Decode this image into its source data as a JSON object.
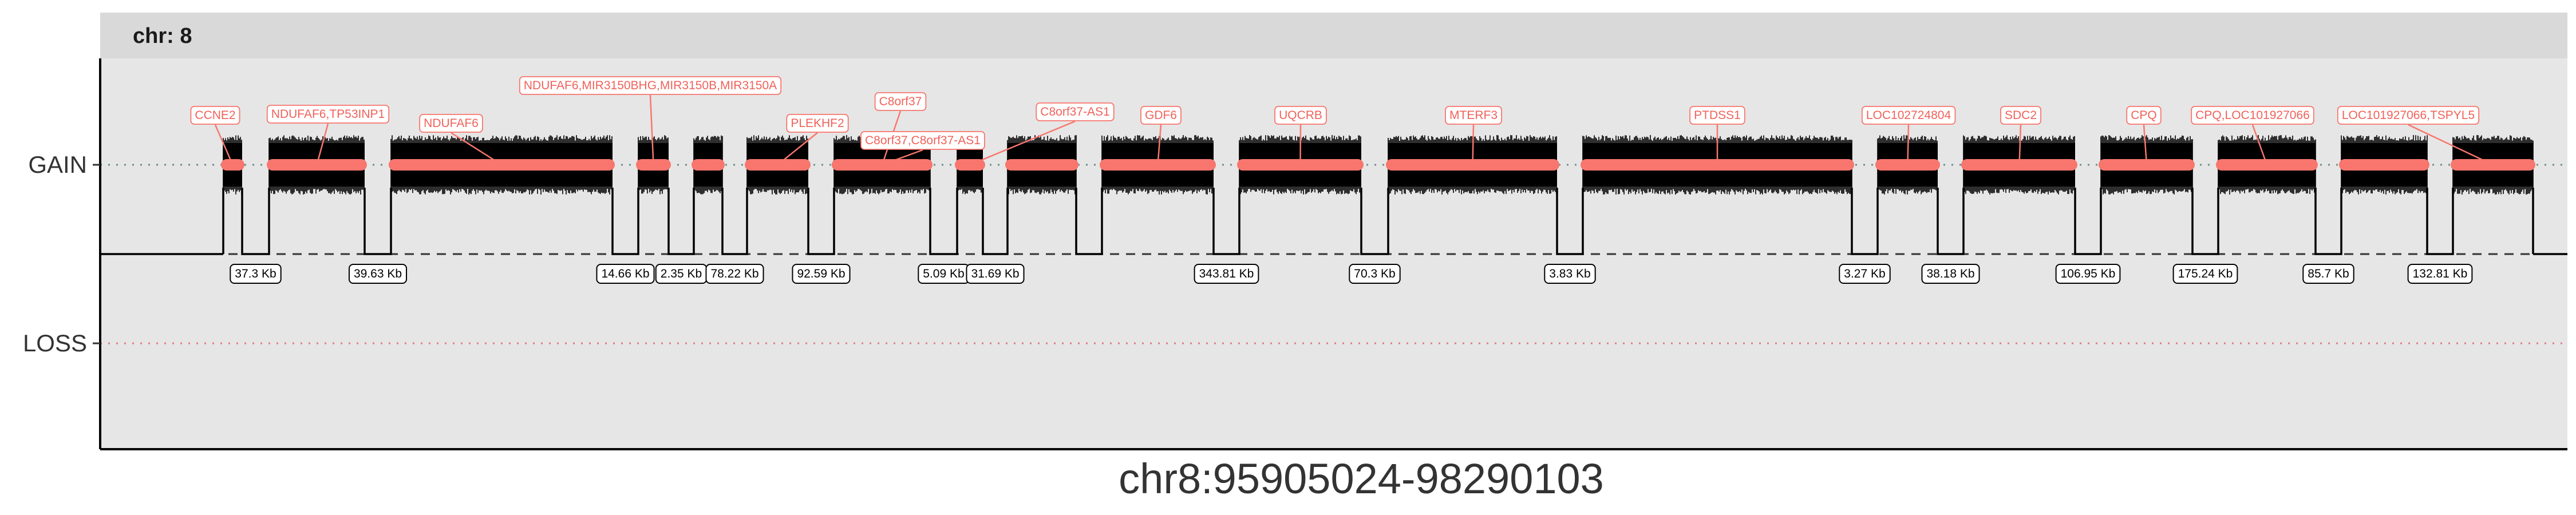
{
  "chart_data": {
    "type": "segment",
    "facet_label": "chr: 8",
    "y_categories": [
      "GAIN",
      "LOSS"
    ],
    "x_label": "chr8:95905024-98290103",
    "colors": {
      "panel": "#e6e6e6",
      "strip": "#d9d9d9",
      "accent": "#f8766d",
      "gain_line": "#6b8e8e",
      "loss_line": "#e07b86",
      "segment": "#000000"
    },
    "segments": [
      {
        "call": "GAIN"
      },
      {
        "call": "GAIN"
      },
      {
        "call": "GAIN"
      },
      {
        "call": "GAIN"
      },
      {
        "call": "GAIN"
      },
      {
        "call": "GAIN"
      },
      {
        "call": "GAIN"
      },
      {
        "call": "GAIN"
      },
      {
        "call": "GAIN"
      },
      {
        "call": "GAIN"
      },
      {
        "call": "GAIN"
      },
      {
        "call": "GAIN"
      },
      {
        "call": "GAIN"
      },
      {
        "call": "GAIN"
      },
      {
        "call": "GAIN"
      },
      {
        "call": "GAIN"
      },
      {
        "call": "GAIN"
      },
      {
        "call": "GAIN"
      },
      {
        "call": "GAIN"
      },
      {
        "call": "GAIN"
      },
      {
        "call": "GAIN"
      }
    ],
    "gaps": [
      "37.3 Kb",
      "39.63 Kb",
      "14.66 Kb",
      "2.35 Kb",
      "78.22 Kb",
      "92.59 Kb",
      "5.09 Kb",
      "31.69 Kb",
      "343.81 Kb",
      "70.3 Kb",
      "3.83 Kb",
      "3.27 Kb",
      "38.18 Kb",
      "106.95 Kb",
      "175.24 Kb",
      "85.7 Kb",
      "132.81 Kb"
    ],
    "genes": [
      "CCNE2",
      "NDUFAF6,TP53INP1",
      "NDUFAF6",
      "NDUFAF6,MIR3150BHG,MIR3150B,MIR3150A",
      "PLEKHF2",
      "C8orf37",
      "C8orf37,C8orf37-AS1",
      "C8orf37-AS1",
      "GDF6",
      "UQCRB",
      "MTERF3",
      "PTDSS1",
      "LOC102724804",
      "SDC2",
      "CPQ",
      "CPQ,LOC101927066",
      "LOC101927066,TSPYL5"
    ]
  }
}
